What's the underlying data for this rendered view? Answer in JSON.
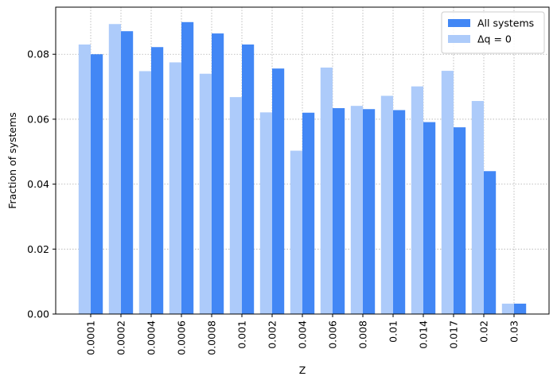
{
  "chart_data": {
    "type": "bar",
    "title": "",
    "xlabel": "Z",
    "ylabel": "Fraction of systems",
    "categories": [
      "0.0001",
      "0.0002",
      "0.0004",
      "0.0006",
      "0.0008",
      "0.001",
      "0.002",
      "0.004",
      "0.006",
      "0.008",
      "0.01",
      "0.014",
      "0.017",
      "0.02",
      "0.03"
    ],
    "series": [
      {
        "name": "All systems",
        "color": "#4287f5",
        "values": [
          0.08,
          0.0871,
          0.0822,
          0.0899,
          0.0864,
          0.083,
          0.0756,
          0.062,
          0.0634,
          0.0631,
          0.0628,
          0.0591,
          0.0575,
          0.044,
          0.0032
        ]
      },
      {
        "name": "Δq = 0",
        "color": "#adcbfa",
        "values": [
          0.083,
          0.0893,
          0.0748,
          0.0775,
          0.074,
          0.0668,
          0.0621,
          0.0503,
          0.0759,
          0.0641,
          0.0672,
          0.0701,
          0.0749,
          0.0656,
          0.0032
        ]
      }
    ],
    "ylim": [
      0,
      0.0945
    ],
    "yticks": [
      "0.00",
      "0.02",
      "0.04",
      "0.06",
      "0.08"
    ],
    "grid": true,
    "legend_position": "top-right"
  }
}
